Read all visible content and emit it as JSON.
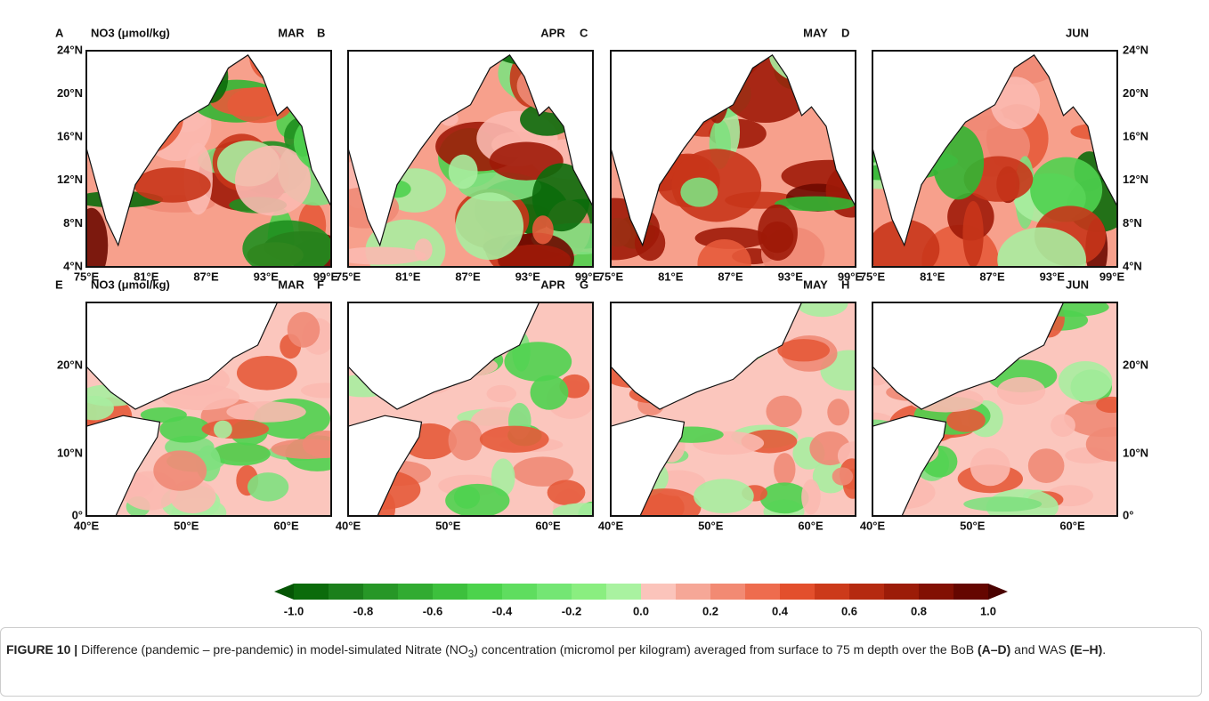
{
  "panels": [
    {
      "letter": "A",
      "variable": "NO3 (μmol/kg)",
      "month": "MAR"
    },
    {
      "letter": "B",
      "month": "APR"
    },
    {
      "letter": "C",
      "month": "MAY"
    },
    {
      "letter": "D",
      "month": "JUN"
    },
    {
      "letter": "E",
      "variable": "NO3 (μmol/kg)",
      "month": "MAR"
    },
    {
      "letter": "F",
      "month": "APR"
    },
    {
      "letter": "G",
      "month": "MAY"
    },
    {
      "letter": "H",
      "month": "JUN"
    }
  ],
  "top_axes": {
    "y": [
      "24°N",
      "20°N",
      "16°N",
      "12°N",
      "8°N",
      "4°N"
    ],
    "x": [
      "75°E",
      "81°E",
      "87°E",
      "93°E",
      "99°E"
    ]
  },
  "bottom_axes": {
    "y": [
      "20°N",
      "10°N",
      "0°"
    ],
    "x": [
      "40°E",
      "50°E",
      "60°E"
    ]
  },
  "colorbar": {
    "ticks": [
      "-1.0",
      "-0.8",
      "-0.6",
      "-0.4",
      "-0.2",
      "0.0",
      "0.2",
      "0.4",
      "0.6",
      "0.8",
      "1.0"
    ]
  },
  "caption": {
    "label": "FIGURE 10 |",
    "text1": " Difference (pandemic – pre-pandemic) in model-simulated Nitrate (NO",
    "sub": "3",
    "text2": ") concentration (micromol per kilogram) averaged from surface to 75 m depth over the BoB ",
    "bold1": "(A–D)",
    "text3": " and WAS ",
    "bold2": "(E–H)",
    "end": "."
  }
}
